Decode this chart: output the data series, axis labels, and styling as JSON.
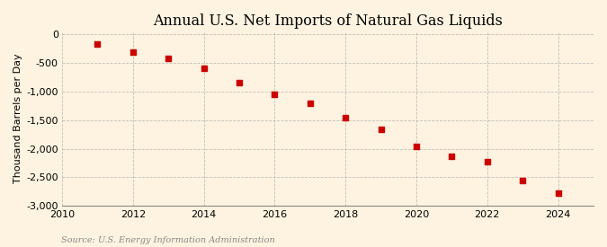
{
  "title": "Annual U.S. Net Imports of Natural Gas Liquids",
  "ylabel": "Thousand Barrels per Day",
  "source": "Source: U.S. Energy Information Administration",
  "background_color": "#fdf3e0",
  "marker_color": "#cc0000",
  "years": [
    2011,
    2012,
    2013,
    2014,
    2015,
    2016,
    2017,
    2018,
    2019,
    2020,
    2021,
    2022,
    2023,
    2024
  ],
  "values": [
    -175,
    -310,
    -425,
    -590,
    -840,
    -1050,
    -1210,
    -1460,
    -1660,
    -1960,
    -2130,
    -2230,
    -2560,
    -2780
  ],
  "xlim": [
    2010,
    2025
  ],
  "ylim": [
    -3000,
    50
  ],
  "yticks": [
    0,
    -500,
    -1000,
    -1500,
    -2000,
    -2500,
    -3000
  ],
  "xticks": [
    2010,
    2012,
    2014,
    2016,
    2018,
    2020,
    2022,
    2024
  ],
  "grid_color": "#aaaaaa",
  "title_fontsize": 11.5,
  "label_fontsize": 8,
  "tick_fontsize": 8,
  "source_fontsize": 7
}
